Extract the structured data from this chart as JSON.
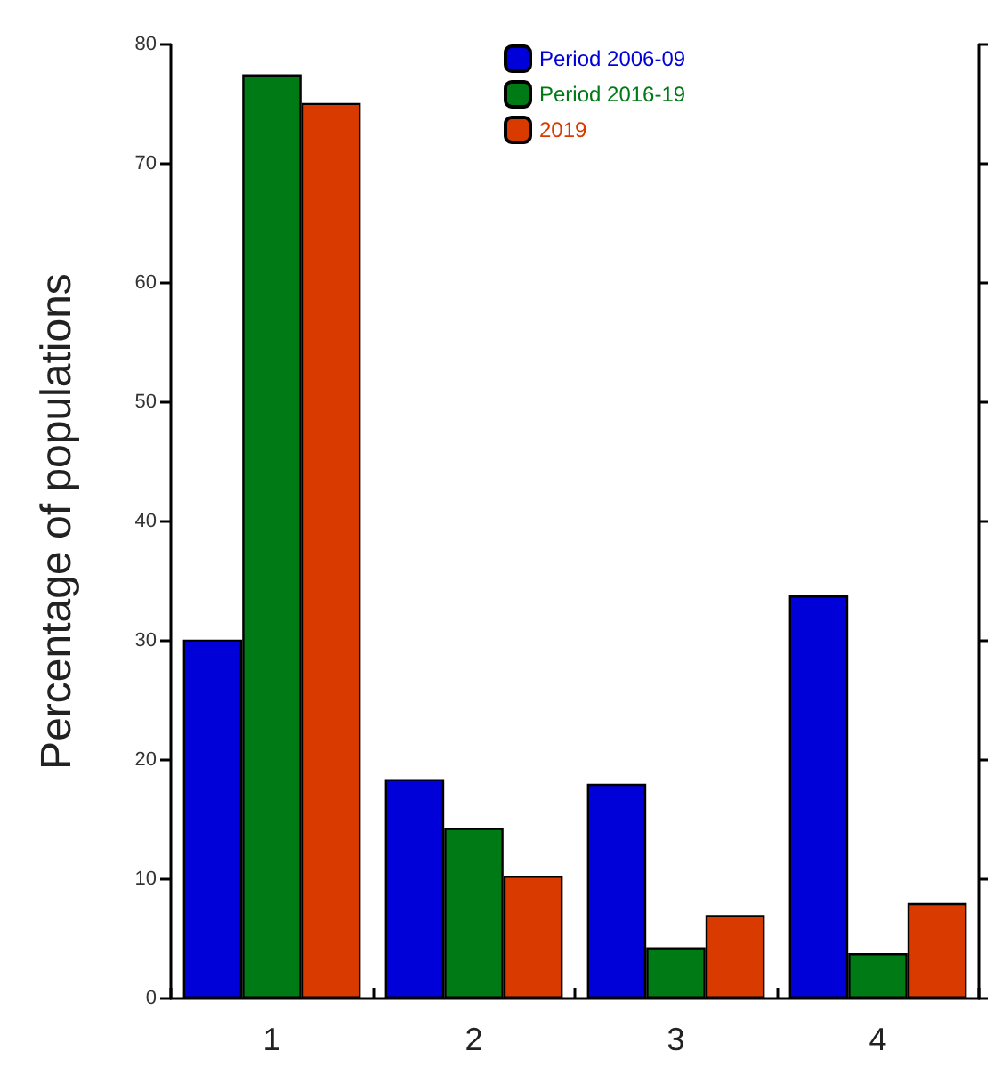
{
  "chart_data": {
    "type": "bar",
    "ylabel": "Percentage of populations",
    "categories": [
      "1",
      "2",
      "3",
      "4"
    ],
    "series": [
      {
        "name": "Period 2006-09",
        "color": "#0000d8",
        "values": [
          30.1,
          18.4,
          18.0,
          33.8
        ]
      },
      {
        "name": "Period 2016-19",
        "color": "#007a14",
        "values": [
          77.5,
          14.3,
          4.3,
          3.8
        ]
      },
      {
        "name": "2019",
        "color": "#d83a00",
        "values": [
          75.1,
          10.3,
          7.0,
          8.0
        ]
      }
    ],
    "ylim": [
      0,
      80
    ],
    "yticks": [
      0,
      10,
      20,
      30,
      40,
      50,
      60,
      70,
      80
    ],
    "grid": false,
    "legend": "top"
  }
}
